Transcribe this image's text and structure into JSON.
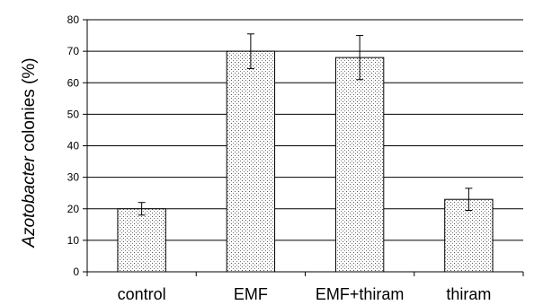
{
  "chart_data": {
    "type": "bar",
    "categories": [
      "control",
      "EMF",
      "EMF+thiram",
      "thiram"
    ],
    "values": [
      20,
      70,
      68,
      23
    ],
    "error": [
      2,
      5.5,
      7,
      3.5
    ],
    "ylabel_italic": "Azotobacter",
    "ylabel_rest": " colonies (%)",
    "yticks": [
      "0",
      "10",
      "20",
      "30",
      "40",
      "50",
      "60",
      "70",
      "80"
    ],
    "ylim": [
      0,
      80
    ],
    "grid": true,
    "bar_fill": "#ffffff",
    "bar_stroke": "#000000"
  }
}
